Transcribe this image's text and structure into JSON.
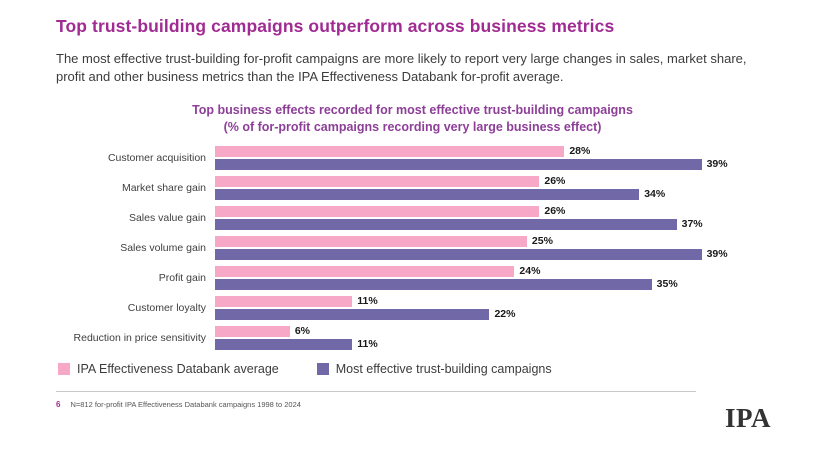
{
  "header": {
    "title": "Top trust-building campaigns outperform across business metrics",
    "subtitle": "The most effective trust-building for-profit campaigns are more likely to report very large changes in sales, market share, profit and other business metrics than the IPA Effectiveness Databank for-profit average."
  },
  "chart_data": {
    "type": "bar",
    "orientation": "horizontal",
    "title": "Top business effects recorded for most effective trust-building campaigns",
    "subtitle": "(% of for-profit campaigns recording very large business effect)",
    "categories": [
      "Customer acquisition",
      "Market share gain",
      "Sales value gain",
      "Sales volume gain",
      "Profit gain",
      "Customer loyalty",
      "Reduction in price sensitivity"
    ],
    "series": [
      {
        "name": "IPA Effectiveness Databank average",
        "color": "#f6a8c6",
        "values": [
          28,
          26,
          26,
          25,
          24,
          11,
          6
        ]
      },
      {
        "name": "Most effective trust-building campaigns",
        "color": "#7168a8",
        "values": [
          39,
          34,
          37,
          39,
          35,
          22,
          11
        ]
      }
    ],
    "value_suffix": "%",
    "xlim": [
      0,
      42
    ],
    "grid": false,
    "legend_position": "bottom"
  },
  "footer": {
    "page_number": "6",
    "note": "N=812 for-profit IPA Effectiveness Databank campaigns 1998 to 2024",
    "logo": "IPA"
  }
}
